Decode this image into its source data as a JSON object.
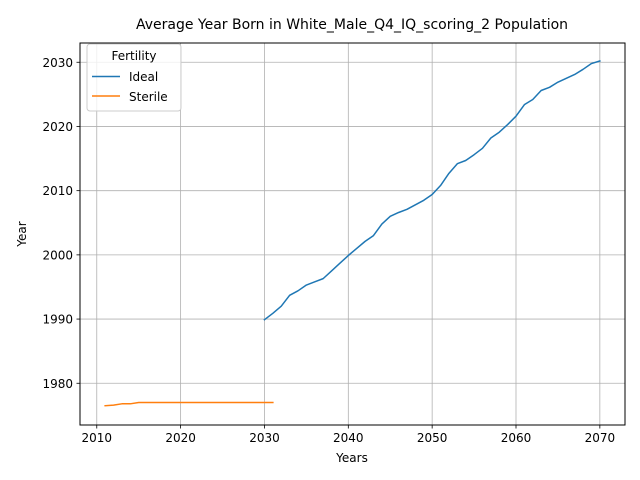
{
  "chart_data": {
    "type": "line",
    "title": "Average Year Born in White_Male_Q4_IQ_scoring_2 Population",
    "xlabel": "Years",
    "ylabel": "Year",
    "xlim": [
      2008,
      2073
    ],
    "ylim": [
      1973.5,
      2033
    ],
    "xticks": [
      2010,
      2020,
      2030,
      2040,
      2050,
      2060,
      2070
    ],
    "yticks": [
      1980,
      1990,
      2000,
      2010,
      2020,
      2030
    ],
    "grid": true,
    "legend": {
      "title": "Fertility",
      "location": "upper left"
    },
    "series": [
      {
        "name": "Ideal",
        "color": "#1f77b4",
        "x": [
          2030,
          2031,
          2032,
          2033,
          2034,
          2035,
          2036,
          2037,
          2038,
          2039,
          2040,
          2041,
          2042,
          2043,
          2044,
          2045,
          2046,
          2047,
          2048,
          2049,
          2050,
          2051,
          2052,
          2053,
          2054,
          2055,
          2056,
          2057,
          2058,
          2059,
          2060,
          2061,
          2062,
          2063,
          2064,
          2065,
          2066,
          2067,
          2068,
          2069,
          2070
        ],
        "y": [
          1989.9,
          1990.9,
          1992.0,
          1993.7,
          1994.4,
          1995.3,
          1995.8,
          1996.3,
          1997.5,
          1998.7,
          1999.9,
          2001.0,
          2002.1,
          2003.0,
          2004.8,
          2006.0,
          2006.6,
          2007.1,
          2007.8,
          2008.5,
          2009.4,
          2010.8,
          2012.7,
          2014.2,
          2014.7,
          2015.6,
          2016.6,
          2018.2,
          2019.1,
          2020.3,
          2021.6,
          2023.4,
          2024.2,
          2025.6,
          2026.1,
          2026.9,
          2027.5,
          2028.1,
          2028.9,
          2029.8,
          2030.2
        ]
      },
      {
        "name": "Sterile",
        "color": "#ff7f0e",
        "x": [
          2011,
          2012,
          2013,
          2014,
          2015,
          2016,
          2017,
          2018,
          2019,
          2020,
          2021,
          2022,
          2023,
          2024,
          2025,
          2026,
          2027,
          2028,
          2029,
          2030,
          2031
        ],
        "y": [
          1976.5,
          1976.6,
          1976.8,
          1976.8,
          1977.0,
          1977.0,
          1977.0,
          1977.0,
          1977.0,
          1977.0,
          1977.0,
          1977.0,
          1977.0,
          1977.0,
          1977.0,
          1977.0,
          1977.0,
          1977.0,
          1977.0,
          1977.0,
          1977.0
        ]
      }
    ]
  }
}
